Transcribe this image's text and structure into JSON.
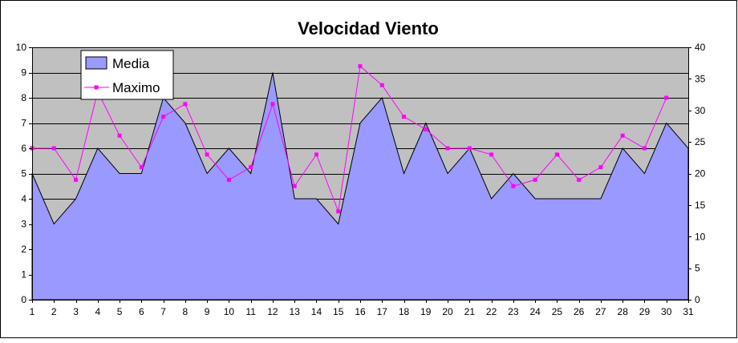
{
  "chart_data": {
    "type": "area",
    "title": "Velocidad Viento",
    "xlabel": "",
    "ylabel": "",
    "x": [
      1,
      2,
      3,
      4,
      5,
      6,
      7,
      8,
      9,
      10,
      11,
      12,
      13,
      14,
      15,
      16,
      17,
      18,
      19,
      20,
      21,
      22,
      23,
      24,
      25,
      26,
      27,
      28,
      29,
      30,
      31
    ],
    "ylim": [
      0,
      10
    ],
    "y2lim": [
      0,
      40
    ],
    "yticks": [
      0,
      1,
      2,
      3,
      4,
      5,
      6,
      7,
      8,
      9,
      10
    ],
    "y2ticks": [
      0,
      5,
      10,
      15,
      20,
      25,
      30,
      35,
      40
    ],
    "grid": true,
    "legend_position": "top-left",
    "colors": {
      "plot_bg": "#c0c0c0",
      "area_fill": "#9999ff",
      "line": "#ff00ff",
      "grid": "#000000"
    },
    "series": [
      {
        "name": "Media",
        "type": "area",
        "axis": "left",
        "values": [
          5,
          3,
          4,
          6,
          5,
          5,
          8,
          7,
          5,
          6,
          5,
          9,
          4,
          4,
          3,
          7,
          8,
          5,
          7,
          5,
          6,
          4,
          5,
          4,
          4,
          4,
          4,
          6,
          5,
          7,
          6
        ]
      },
      {
        "name": "Maximo",
        "type": "line",
        "axis": "right",
        "values": [
          24,
          24,
          19,
          33,
          26,
          21,
          29,
          31,
          23,
          19,
          21,
          31,
          18,
          23,
          14,
          37,
          34,
          29,
          27,
          24,
          24,
          23,
          18,
          19,
          23,
          19,
          21,
          26,
          24,
          32,
          null
        ]
      }
    ]
  }
}
